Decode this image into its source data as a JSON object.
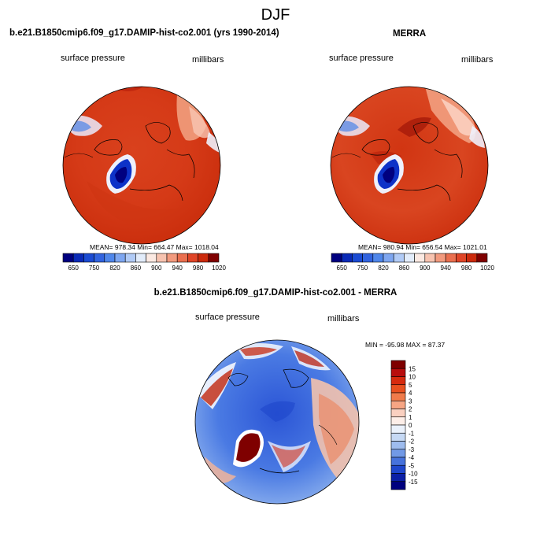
{
  "page_title": "DJF",
  "chart_data": [
    {
      "type": "heatmap",
      "projection": "polar stereographic (north)",
      "title": "b.e21.B1850cmip6.f09_g17.DAMIP-hist-co2.001 (yrs 1990-2014)",
      "left_label": "surface pressure",
      "right_label": "millibars",
      "stats": "MEAN= 978.34   Min= 664.47   Max= 1018.04",
      "stats_values": {
        "mean": 978.34,
        "min": 664.47,
        "max": 1018.04
      },
      "colorbar": {
        "orientation": "horizontal",
        "levels": [
          650,
          700,
          750,
          800,
          820,
          840,
          860,
          880,
          900,
          920,
          940,
          960,
          980,
          1000,
          1020
        ],
        "tick_labels": [
          "650",
          "750",
          "820",
          "860",
          "900",
          "940",
          "980",
          "1020"
        ],
        "colors": [
          "#00007f",
          "#0a2ab7",
          "#1b4bd3",
          "#3163df",
          "#4f86ea",
          "#7ea6f0",
          "#b1cbf6",
          "#e2ecfa",
          "#fbe9e2",
          "#f7c3b0",
          "#f29a7e",
          "#ea6f4f",
          "#e04527",
          "#cc2a0c",
          "#7f0000"
        ]
      }
    },
    {
      "type": "heatmap",
      "projection": "polar stereographic (north)",
      "title": "MERRA",
      "left_label": "surface pressure",
      "right_label": "millibars",
      "stats": "MEAN= 980.94   Min= 656.54   Max= 1021.01",
      "stats_values": {
        "mean": 980.94,
        "min": 656.54,
        "max": 1021.01
      },
      "colorbar": {
        "orientation": "horizontal",
        "levels": [
          650,
          700,
          750,
          800,
          820,
          840,
          860,
          880,
          900,
          920,
          940,
          960,
          980,
          1000,
          1020
        ],
        "tick_labels": [
          "650",
          "750",
          "820",
          "860",
          "900",
          "940",
          "980",
          "1020"
        ],
        "colors": [
          "#00007f",
          "#0a2ab7",
          "#1b4bd3",
          "#3163df",
          "#4f86ea",
          "#7ea6f0",
          "#b1cbf6",
          "#e2ecfa",
          "#fbe9e2",
          "#f7c3b0",
          "#f29a7e",
          "#ea6f4f",
          "#e04527",
          "#cc2a0c",
          "#7f0000"
        ]
      }
    },
    {
      "type": "heatmap",
      "projection": "polar stereographic (north)",
      "title": "b.e21.B1850cmip6.f09_g17.DAMIP-hist-co2.001 - MERRA",
      "left_label": "surface pressure",
      "right_label": "millibars",
      "stats": "MIN = -95.98  MAX =  87.37",
      "stats_values": {
        "min": -95.98,
        "max": 87.37
      },
      "colorbar": {
        "orientation": "vertical",
        "levels": [
          15,
          10,
          5,
          4,
          3,
          2,
          1,
          0,
          -1,
          -2,
          -3,
          -4,
          -5,
          -10,
          -15
        ],
        "tick_labels": [
          "15",
          "10",
          "5",
          "4",
          "3",
          "2",
          "1",
          "0",
          "-1",
          "-2",
          "-3",
          "-4",
          "-5",
          "-10",
          "-15"
        ],
        "colors": [
          "#7f0000",
          "#b80d0d",
          "#d62a0e",
          "#e8501f",
          "#f07b4a",
          "#f6a584",
          "#fad0c0",
          "#fdeee8",
          "#eaf1fb",
          "#c6d9f4",
          "#9ebcee",
          "#7199e6",
          "#4672dc",
          "#1e46cc",
          "#0b1fa6",
          "#00007f"
        ]
      }
    }
  ]
}
